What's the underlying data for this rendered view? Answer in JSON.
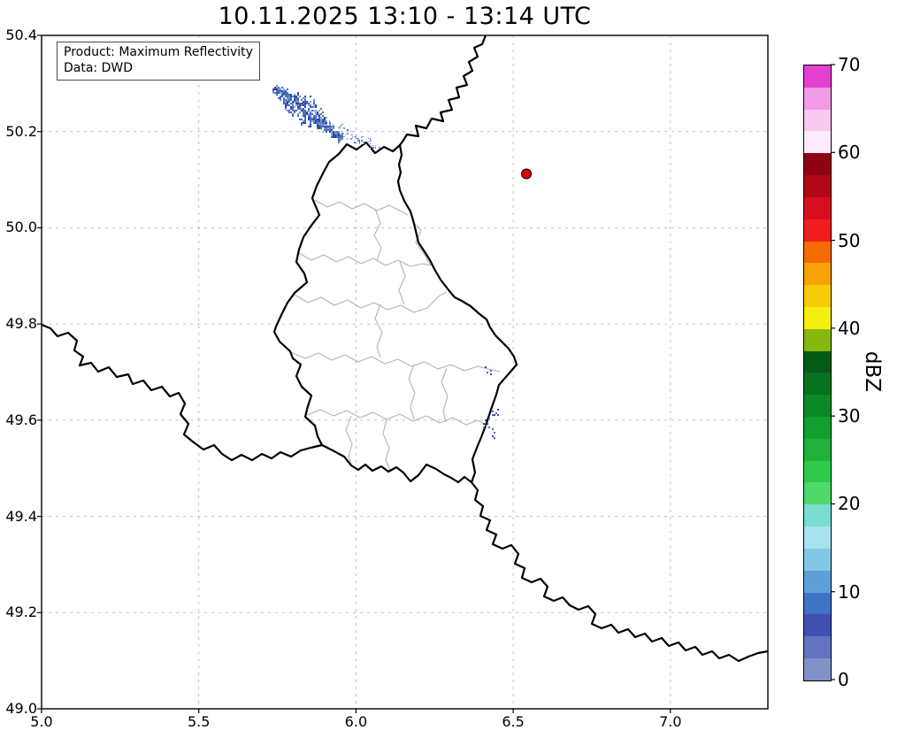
{
  "title": "10.11.2025 13:10 - 13:14 UTC",
  "info_box": {
    "product": "Product: Maximum Reflectivity",
    "data_source": "Data: DWD"
  },
  "x_axis": {
    "min": 5.0,
    "max": 7.31,
    "ticks": [
      {
        "value": 5.0,
        "label": "5.0"
      },
      {
        "value": 5.5,
        "label": "5.5"
      },
      {
        "value": 6.0,
        "label": "6.0"
      },
      {
        "value": 6.5,
        "label": "6.5"
      },
      {
        "value": 7.0,
        "label": "7.0"
      }
    ]
  },
  "y_axis": {
    "min": 49.0,
    "max": 50.4,
    "ticks": [
      {
        "value": 49.0,
        "label": "49.0"
      },
      {
        "value": 49.2,
        "label": "49.2"
      },
      {
        "value": 49.4,
        "label": "49.4"
      },
      {
        "value": 49.6,
        "label": "49.6"
      },
      {
        "value": 49.8,
        "label": "49.8"
      },
      {
        "value": 50.0,
        "label": "50.0"
      },
      {
        "value": 50.2,
        "label": "50.2"
      },
      {
        "value": 50.4,
        "label": "50.4"
      }
    ]
  },
  "colorbar": {
    "label": "dBZ",
    "min": 0,
    "max": 70,
    "tick_values": [
      0,
      10,
      20,
      30,
      40,
      50,
      60,
      70
    ],
    "segments": [
      {
        "from": 0,
        "to": 2.5,
        "color": "#8192c6"
      },
      {
        "from": 2.5,
        "to": 5,
        "color": "#6273c0"
      },
      {
        "from": 5,
        "to": 7.5,
        "color": "#4050b2"
      },
      {
        "from": 7.5,
        "to": 10,
        "color": "#3f73c5"
      },
      {
        "from": 10,
        "to": 12.5,
        "color": "#5da0d8"
      },
      {
        "from": 12.5,
        "to": 15,
        "color": "#83c7e8"
      },
      {
        "from": 15,
        "to": 17.5,
        "color": "#a9e2f0"
      },
      {
        "from": 17.5,
        "to": 20,
        "color": "#79ddd2"
      },
      {
        "from": 20,
        "to": 22.5,
        "color": "#4fd96a"
      },
      {
        "from": 22.5,
        "to": 25,
        "color": "#2fc94c"
      },
      {
        "from": 25,
        "to": 27.5,
        "color": "#1fb33c"
      },
      {
        "from": 27.5,
        "to": 30,
        "color": "#149e2f"
      },
      {
        "from": 30,
        "to": 32.5,
        "color": "#0d8826"
      },
      {
        "from": 32.5,
        "to": 35,
        "color": "#07711d"
      },
      {
        "from": 35,
        "to": 37.5,
        "color": "#055a15"
      },
      {
        "from": 37.5,
        "to": 40,
        "color": "#86b90f"
      },
      {
        "from": 40,
        "to": 42.5,
        "color": "#f6ef12"
      },
      {
        "from": 42.5,
        "to": 45,
        "color": "#f8cb08"
      },
      {
        "from": 45,
        "to": 47.5,
        "color": "#f9a203"
      },
      {
        "from": 47.5,
        "to": 50,
        "color": "#f66b02"
      },
      {
        "from": 50,
        "to": 52.5,
        "color": "#ef1d1d"
      },
      {
        "from": 52.5,
        "to": 55,
        "color": "#d41020"
      },
      {
        "from": 55,
        "to": 57.5,
        "color": "#b20717"
      },
      {
        "from": 57.5,
        "to": 60,
        "color": "#8e0311"
      },
      {
        "from": 60,
        "to": 62.5,
        "color": "#fdeafa"
      },
      {
        "from": 62.5,
        "to": 65,
        "color": "#f9c9f2"
      },
      {
        "from": 65,
        "to": 67.5,
        "color": "#f29ae6"
      },
      {
        "from": 67.5,
        "to": 70,
        "color": "#e441d2"
      }
    ]
  },
  "chart_data": {
    "type": "heatmap",
    "subtype": "weather-radar-reflectivity-map",
    "title": "10.11.2025 13:10 - 13:14 UTC",
    "product": "Maximum Reflectivity",
    "data_source": "DWD",
    "units": "dBZ",
    "xlabel": "",
    "ylabel": "",
    "xlim": [
      5.0,
      7.31
    ],
    "ylim": [
      49.0,
      50.4
    ],
    "grid": true,
    "colorbar_range": [
      0,
      70
    ],
    "colorbar_ticks": [
      0,
      10,
      20,
      30,
      40,
      50,
      60,
      70
    ],
    "basemap": "National borders of Luxembourg / Belgium / Germany / France (thick black) with Luxembourg cantonal boundaries (thin gray)",
    "radar_site_marker": {
      "lon": 6.542,
      "lat": 50.112,
      "marker": "circle",
      "color": "#dd0000"
    },
    "echo_palette": [
      "#32479f",
      "#4a6cc0",
      "#6d8ccd",
      "#93acdc"
    ],
    "echo_clusters": {
      "main_band": {
        "from": {
          "lon": 5.737,
          "lat": 50.294
        },
        "to": {
          "lon": 5.953,
          "lat": 50.187
        },
        "intensity_dbz": "0-15",
        "cells": 430
      },
      "fringe": {
        "from": {
          "lon": 5.894,
          "lat": 50.22
        },
        "to": {
          "lon": 6.071,
          "lat": 50.165
        },
        "intensity_dbz": "0-5",
        "cells": 90
      },
      "minor_blobs": [
        {
          "lon": 6.423,
          "lat": 49.706,
          "cells": 4,
          "intensity_dbz": "0-10"
        },
        {
          "lon": 6.44,
          "lat": 49.622,
          "cells": 6,
          "intensity_dbz": "0-10"
        },
        {
          "lon": 6.412,
          "lat": 49.594,
          "cells": 7,
          "intensity_dbz": "0-10"
        },
        {
          "lon": 6.434,
          "lat": 49.574,
          "cells": 5,
          "intensity_dbz": "0-10"
        }
      ]
    }
  }
}
